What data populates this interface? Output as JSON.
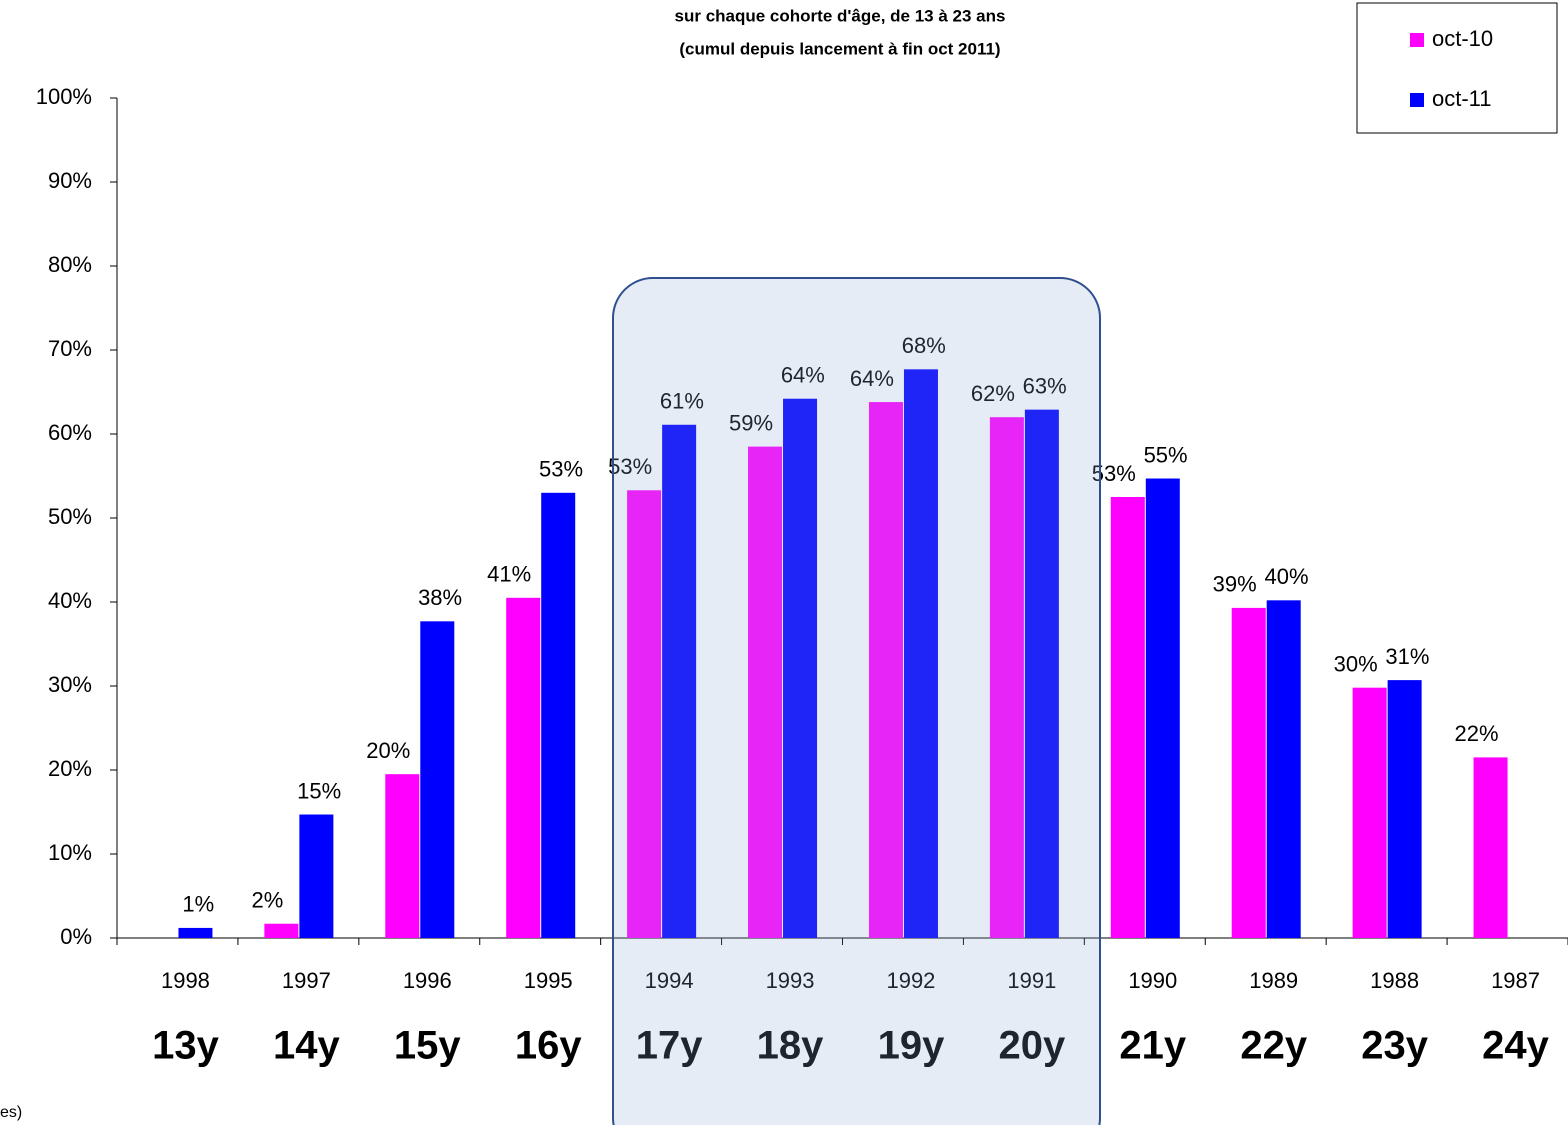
{
  "chart_data": {
    "type": "bar",
    "title": "sur chaque cohorte d'âge, de 13 à 23 ans",
    "subtitle": "(cumul depuis lancement à fin oct 2011)",
    "categories": [
      "1998",
      "1997",
      "1996",
      "1995",
      "1994",
      "1993",
      "1992",
      "1991",
      "1990",
      "1989",
      "1988",
      "1987"
    ],
    "age_labels": [
      "13y",
      "14y",
      "15y",
      "16y",
      "17y",
      "18y",
      "19y",
      "20y",
      "21y",
      "22y",
      "23y",
      "24y"
    ],
    "series": [
      {
        "name": "oct-10",
        "color": "#ff00ff",
        "values": [
          null,
          1.7,
          19.5,
          40.5,
          53.3,
          58.5,
          63.8,
          62,
          52.5,
          39.3,
          29.8,
          21.5
        ],
        "value_labels": [
          null,
          "2%",
          "20%",
          "41%",
          "53%",
          "59%",
          "64%",
          "62%",
          "53%",
          "39%",
          "30%",
          "22%"
        ]
      },
      {
        "name": "oct-11",
        "color": "#0000ff",
        "values": [
          1.2,
          14.7,
          37.7,
          53,
          61.1,
          64.2,
          67.7,
          62.9,
          54.7,
          40.2,
          30.7,
          null
        ],
        "value_labels": [
          "1%",
          "15%",
          "38%",
          "53%",
          "61%",
          "64%",
          "68%",
          "63%",
          "55%",
          "40%",
          "31%",
          null
        ]
      }
    ],
    "ylim": [
      0,
      100
    ],
    "yticks": [
      {
        "value": 0,
        "label": "0%"
      },
      {
        "value": 10,
        "label": "10%"
      },
      {
        "value": 20,
        "label": "20%"
      },
      {
        "value": 30,
        "label": "30%"
      },
      {
        "value": 40,
        "label": "40%"
      },
      {
        "value": 50,
        "label": "50%"
      },
      {
        "value": 60,
        "label": "60%"
      },
      {
        "value": 70,
        "label": "70%"
      },
      {
        "value": 80,
        "label": "80%"
      },
      {
        "value": 90,
        "label": "90%"
      },
      {
        "value": 100,
        "label": "100%"
      }
    ],
    "legend": "top-right",
    "footnote": "es)"
  }
}
